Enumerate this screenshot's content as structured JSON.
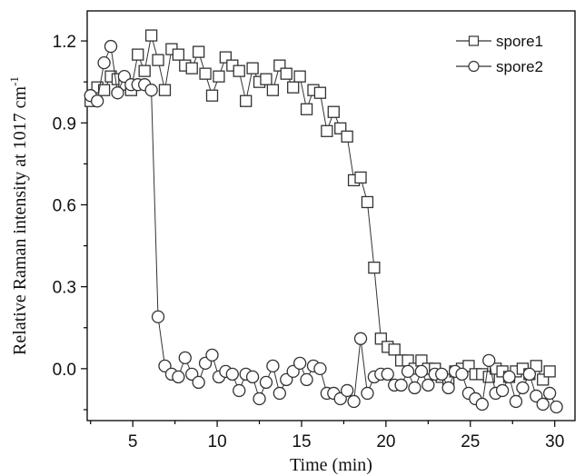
{
  "chart_data": {
    "type": "scatter",
    "xlabel": "Time (min)",
    "ylabel": "Relative Raman intensity at 1017 cm",
    "ylabel_superscript": "-1",
    "xlim": [
      2.3,
      31.2
    ],
    "ylim": [
      -0.19,
      1.31
    ],
    "xticks": [
      5,
      10,
      15,
      20,
      25,
      30
    ],
    "yticks": [
      0.0,
      0.3,
      0.6,
      0.9,
      1.2
    ],
    "xtick_labels": [
      "5",
      "10",
      "15",
      "20",
      "25",
      "30"
    ],
    "ytick_labels": [
      "0.0",
      "0.3",
      "0.6",
      "0.9",
      "1.2"
    ],
    "grid": false,
    "legend_position": "top-right",
    "series": [
      {
        "name": "spore1",
        "marker": "square",
        "color": "#333333",
        "x": [
          2.5,
          2.9,
          3.3,
          3.7,
          4.1,
          4.5,
          4.9,
          5.3,
          5.7,
          6.1,
          6.5,
          6.9,
          7.3,
          7.7,
          8.1,
          8.5,
          8.9,
          9.3,
          9.7,
          10.1,
          10.5,
          10.9,
          11.3,
          11.7,
          12.1,
          12.5,
          12.9,
          13.3,
          13.7,
          14.1,
          14.5,
          14.9,
          15.3,
          15.7,
          16.1,
          16.5,
          16.9,
          17.3,
          17.7,
          18.1,
          18.5,
          18.9,
          19.3,
          19.7,
          20.1,
          20.5,
          20.9,
          21.3,
          21.7,
          22.1,
          22.5,
          22.9,
          23.3,
          23.7,
          24.1,
          24.5,
          24.9,
          25.3,
          25.7,
          26.1,
          26.5,
          26.9,
          27.3,
          27.7,
          28.1,
          28.5,
          28.9,
          29.3,
          29.7
        ],
        "y": [
          0.98,
          1.03,
          1.02,
          1.07,
          1.06,
          1.04,
          1.02,
          1.15,
          1.09,
          1.22,
          1.13,
          1.02,
          1.17,
          1.15,
          1.11,
          1.1,
          1.16,
          1.08,
          1.0,
          1.07,
          1.14,
          1.11,
          1.09,
          0.98,
          1.1,
          1.05,
          1.06,
          1.02,
          1.11,
          1.08,
          1.03,
          1.07,
          0.95,
          1.02,
          1.01,
          0.87,
          0.94,
          0.88,
          0.85,
          0.69,
          0.7,
          0.61,
          0.37,
          0.11,
          0.08,
          0.07,
          0.03,
          0.03,
          0.0,
          0.03,
          0.0,
          0.0,
          -0.03,
          -0.04,
          -0.01,
          0.0,
          0.01,
          -0.02,
          -0.02,
          -0.03,
          0.0,
          -0.01,
          -0.03,
          -0.01,
          0.0,
          -0.02,
          0.01,
          -0.04,
          -0.01
        ]
      },
      {
        "name": "spore2",
        "marker": "circle",
        "color": "#333333",
        "x": [
          2.5,
          2.9,
          3.3,
          3.7,
          4.1,
          4.5,
          4.9,
          5.3,
          5.7,
          6.1,
          6.5,
          6.9,
          7.3,
          7.7,
          8.1,
          8.5,
          8.9,
          9.3,
          9.7,
          10.1,
          10.5,
          10.9,
          11.3,
          11.7,
          12.1,
          12.5,
          12.9,
          13.3,
          13.7,
          14.1,
          14.5,
          14.9,
          15.3,
          15.7,
          16.1,
          16.5,
          16.9,
          17.3,
          17.7,
          18.1,
          18.5,
          18.9,
          19.3,
          19.7,
          20.1,
          20.5,
          20.9,
          21.3,
          21.7,
          22.1,
          22.5,
          22.9,
          23.3,
          23.7,
          24.1,
          24.5,
          24.9,
          25.3,
          25.7,
          26.1,
          26.5,
          26.9,
          27.3,
          27.7,
          28.1,
          28.5,
          28.9,
          29.3,
          29.7,
          30.1
        ],
        "y": [
          1.0,
          0.98,
          1.12,
          1.18,
          1.01,
          1.07,
          1.04,
          1.04,
          1.04,
          1.02,
          0.19,
          0.01,
          -0.02,
          -0.03,
          0.04,
          -0.02,
          -0.05,
          0.02,
          0.05,
          -0.03,
          -0.01,
          -0.02,
          -0.08,
          -0.02,
          -0.03,
          -0.11,
          -0.05,
          0.01,
          -0.09,
          -0.04,
          -0.01,
          0.02,
          -0.04,
          0.01,
          0.0,
          -0.09,
          -0.09,
          -0.11,
          -0.08,
          -0.12,
          0.11,
          -0.09,
          -0.03,
          -0.02,
          -0.02,
          -0.06,
          -0.06,
          -0.01,
          -0.07,
          -0.01,
          -0.06,
          -0.02,
          -0.02,
          -0.07,
          -0.01,
          -0.02,
          -0.09,
          -0.11,
          -0.13,
          0.03,
          -0.09,
          -0.08,
          -0.03,
          -0.12,
          -0.07,
          -0.02,
          -0.1,
          -0.13,
          -0.09,
          -0.14
        ]
      }
    ]
  }
}
